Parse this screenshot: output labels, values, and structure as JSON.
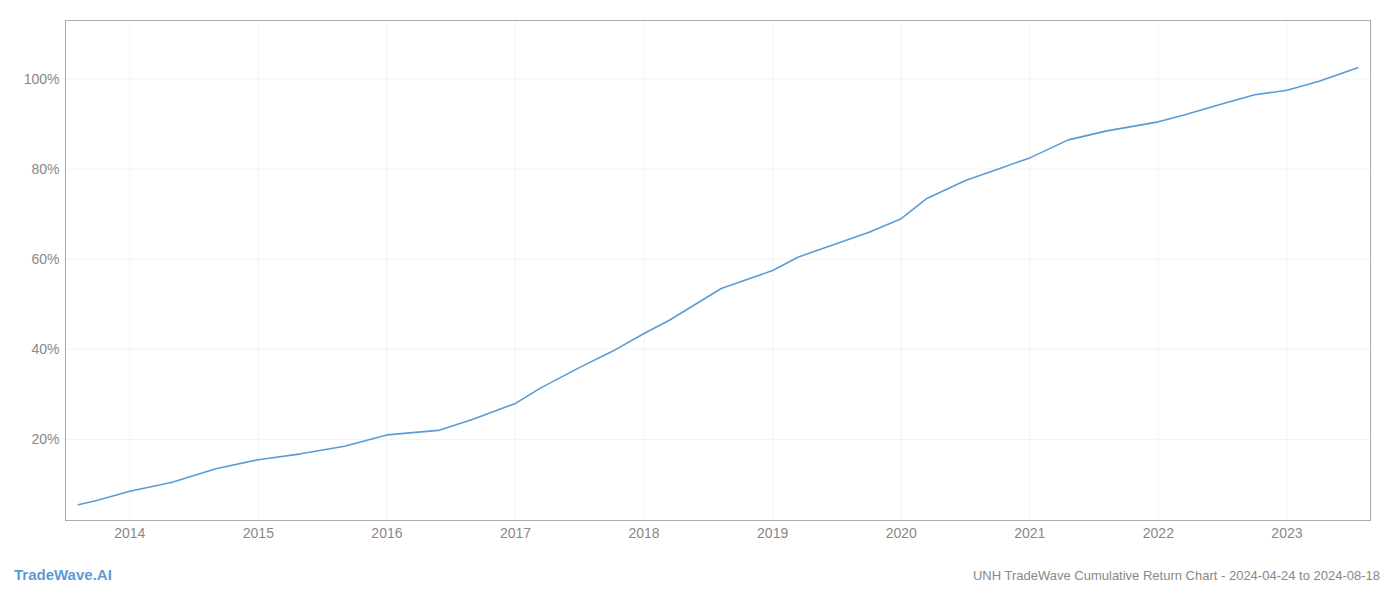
{
  "chart_data": {
    "type": "line",
    "title": "UNH TradeWave Cumulative Return Chart - 2024-04-24 to 2024-08-18",
    "annotations": [
      "TradeWave.AI"
    ],
    "x": [
      2013.6,
      2013.75,
      2014.0,
      2014.33,
      2014.67,
      2015.0,
      2015.33,
      2015.67,
      2016.0,
      2016.2,
      2016.4,
      2016.67,
      2017.0,
      2017.2,
      2017.5,
      2017.75,
      2018.0,
      2018.2,
      2018.4,
      2018.6,
      2018.8,
      2019.0,
      2019.2,
      2019.5,
      2019.75,
      2020.0,
      2020.2,
      2020.5,
      2020.75,
      2021.0,
      2021.3,
      2021.6,
      2021.9,
      2022.0,
      2022.2,
      2022.5,
      2022.75,
      2023.0,
      2023.25,
      2023.55
    ],
    "values": [
      0.055,
      0.065,
      0.085,
      0.105,
      0.135,
      0.155,
      0.168,
      0.185,
      0.21,
      0.215,
      0.22,
      0.245,
      0.28,
      0.315,
      0.36,
      0.395,
      0.435,
      0.465,
      0.5,
      0.535,
      0.555,
      0.575,
      0.605,
      0.635,
      0.66,
      0.69,
      0.735,
      0.775,
      0.8,
      0.825,
      0.865,
      0.885,
      0.9,
      0.905,
      0.92,
      0.945,
      0.965,
      0.975,
      0.995,
      1.025
    ],
    "color": "#5b9bd5",
    "xlim": [
      2013.5,
      2023.65
    ],
    "xticks": [
      2014,
      2015,
      2016,
      2017,
      2018,
      2019,
      2020,
      2021,
      2022,
      2023
    ],
    "ylim": [
      0.02,
      1.13
    ],
    "yticks": [
      {
        "value": 0.2,
        "label": "20%"
      },
      {
        "value": 0.4,
        "label": "40%"
      },
      {
        "value": 0.6,
        "label": "60%"
      },
      {
        "value": 0.8,
        "label": "80%"
      },
      {
        "value": 1.0,
        "label": "100%"
      }
    ],
    "grid": true
  }
}
